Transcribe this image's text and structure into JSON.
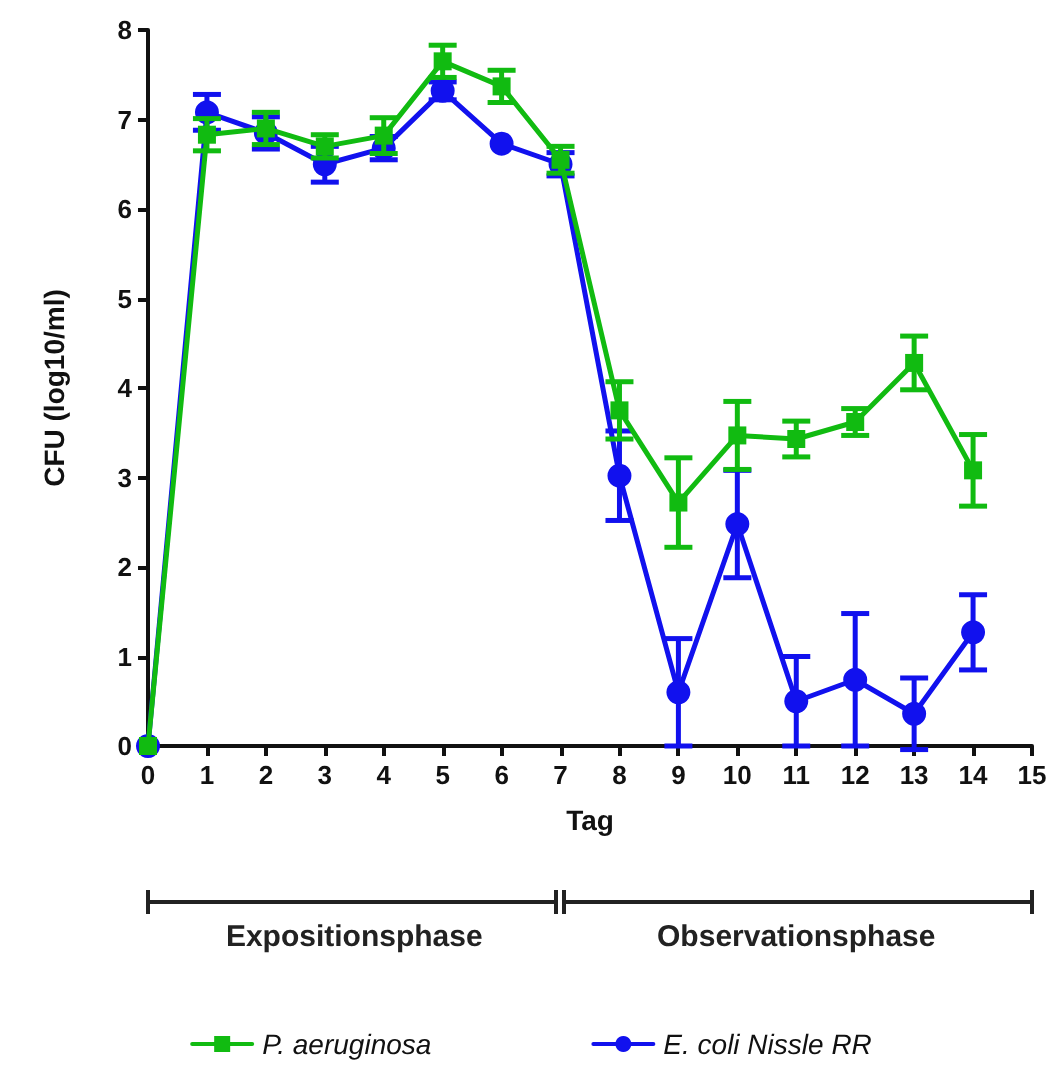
{
  "chart_data": {
    "type": "line",
    "xlabel": "Tag",
    "ylabel": "CFU (log10/ml)",
    "x": [
      0,
      1,
      2,
      3,
      4,
      5,
      6,
      7,
      8,
      9,
      10,
      11,
      12,
      13,
      14
    ],
    "series": [
      {
        "name": "P. aeruginosa",
        "color": "#11bb11",
        "marker": "square",
        "values": [
          0,
          6.83,
          6.9,
          6.7,
          6.82,
          7.65,
          7.37,
          6.55,
          3.75,
          2.72,
          3.47,
          3.43,
          3.62,
          4.28,
          3.08
        ],
        "errors": [
          null,
          0.18,
          0.18,
          0.13,
          0.2,
          0.18,
          0.18,
          0.15,
          0.32,
          0.5,
          0.38,
          0.2,
          0.15,
          0.3,
          0.4
        ]
      },
      {
        "name": "E. coli Nissle RR",
        "color": "#1111ee",
        "marker": "circle",
        "values": [
          0,
          7.08,
          6.85,
          6.5,
          6.68,
          7.32,
          6.73,
          6.5,
          3.02,
          0.6,
          2.48,
          0.5,
          0.74,
          0.36,
          1.27
        ],
        "errors": [
          null,
          0.2,
          0.18,
          0.2,
          0.13,
          0.1,
          null,
          0.13,
          0.5,
          0.6,
          0.6,
          0.5,
          0.74,
          0.4,
          0.42
        ]
      }
    ],
    "xlim": [
      0,
      15
    ],
    "xticks": [
      0,
      1,
      2,
      3,
      4,
      5,
      6,
      7,
      8,
      9,
      10,
      11,
      12,
      13,
      14,
      15
    ],
    "ylim": [
      0,
      8
    ],
    "yticks": [
      0,
      1,
      2,
      3,
      4,
      5,
      6,
      7,
      8
    ],
    "annotations": [
      "Expositionsphase",
      "Observationsphase"
    ],
    "grid": false,
    "legend": "bottom",
    "line_style": "solid"
  }
}
